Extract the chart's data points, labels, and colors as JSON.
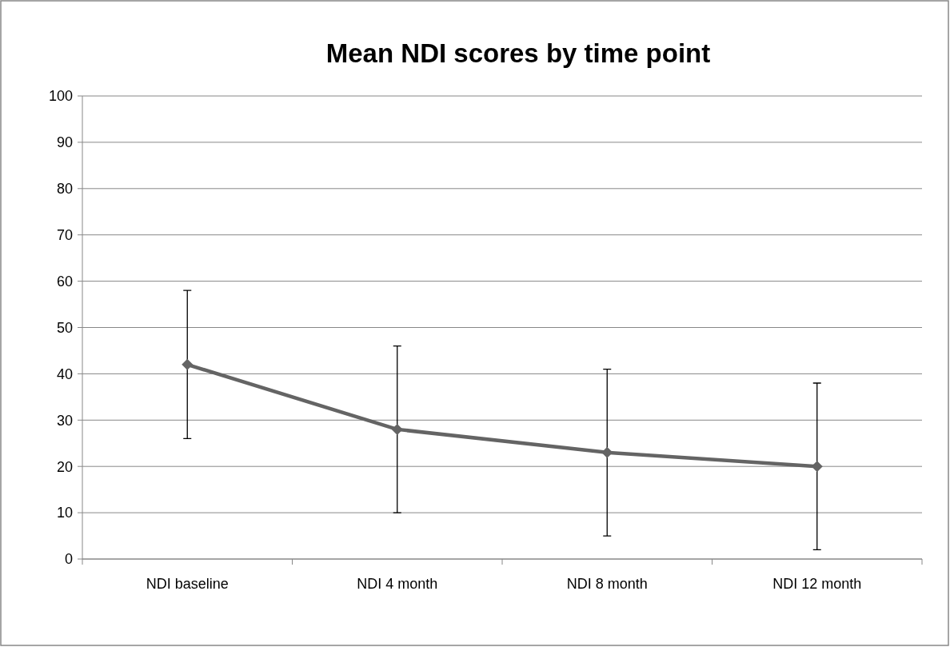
{
  "chart_data": {
    "type": "line",
    "title": "Mean NDI scores by time point",
    "categories": [
      "NDI baseline",
      "NDI 4 month",
      "NDI 8 month",
      "NDI 12 month"
    ],
    "series": [
      {
        "color": "#646464",
        "values": [
          42,
          28,
          23,
          20
        ],
        "errors": [
          16,
          18,
          18,
          18
        ]
      }
    ],
    "ylim": [
      0,
      100
    ],
    "yticks": [
      0,
      10,
      20,
      30,
      40,
      50,
      60,
      70,
      80,
      90,
      100
    ],
    "grid": "y",
    "marker": "diamond",
    "line_style": "solid"
  }
}
